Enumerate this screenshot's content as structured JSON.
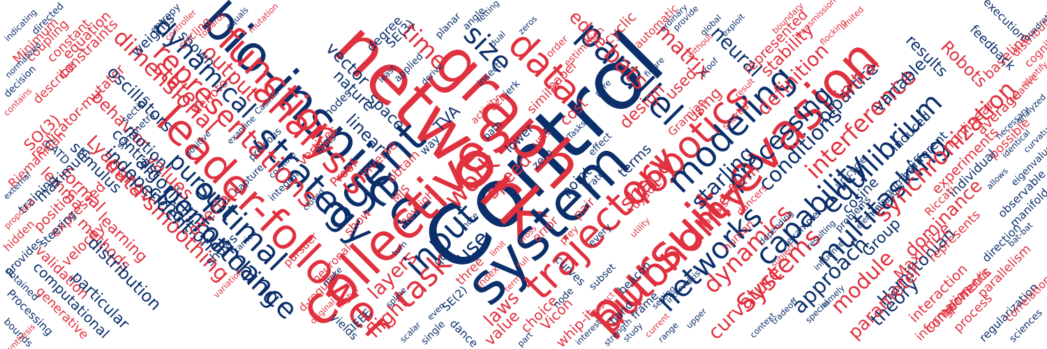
{
  "palette": {
    "red": "#e0313f",
    "navy": "#0b2f6b"
  },
  "words": [
    {
      "text": "Control",
      "color": "navy"
    },
    {
      "text": "network",
      "color": "red"
    },
    {
      "text": "graph",
      "color": "red"
    },
    {
      "text": "system",
      "color": "navy"
    },
    {
      "text": "bio-inspired",
      "color": "navy"
    },
    {
      "text": "pursuit-evasion",
      "color": "red"
    },
    {
      "text": "collectives",
      "color": "red"
    },
    {
      "text": "agent",
      "color": "navy"
    },
    {
      "text": "leader-follower",
      "color": "red"
    },
    {
      "text": "trajectory",
      "color": "red"
    },
    {
      "text": "autonomy",
      "color": "red"
    },
    {
      "text": "function",
      "color": "red"
    },
    {
      "text": "robotics",
      "color": "red"
    },
    {
      "text": "analysis",
      "color": "red"
    },
    {
      "text": "strategy",
      "color": "navy"
    },
    {
      "text": "modeling",
      "color": "navy"
    },
    {
      "text": "input",
      "color": "navy"
    },
    {
      "text": "task",
      "color": "red"
    },
    {
      "text": "data",
      "color": "red"
    },
    {
      "text": "parallel",
      "color": "navy"
    },
    {
      "text": "networks",
      "color": "navy"
    },
    {
      "text": "optimal",
      "color": "navy"
    },
    {
      "text": "performance",
      "color": "navy"
    },
    {
      "text": "capability",
      "color": "navy"
    },
    {
      "text": "equilibrium",
      "color": "navy"
    },
    {
      "text": "multitasking",
      "color": "navy"
    },
    {
      "text": "synchronization",
      "color": "red"
    },
    {
      "text": "interference",
      "color": "red"
    },
    {
      "text": "processing",
      "color": "navy"
    },
    {
      "text": "dynamics",
      "color": "red"
    },
    {
      "text": "Systems",
      "color": "red"
    },
    {
      "text": "representations",
      "color": "red"
    },
    {
      "text": "dimensional",
      "color": "red"
    },
    {
      "text": "dynamical",
      "color": "navy"
    },
    {
      "text": "states",
      "color": "red"
    },
    {
      "text": "output",
      "color": "red"
    },
    {
      "text": "matching",
      "color": "navy"
    },
    {
      "text": "pursuit",
      "color": "navy"
    },
    {
      "text": "work",
      "color": "red"
    },
    {
      "text": "size",
      "color": "navy"
    },
    {
      "text": "time",
      "color": "red"
    },
    {
      "text": "bats",
      "color": "red"
    },
    {
      "text": "matrix",
      "color": "red"
    },
    {
      "text": "edge",
      "color": "red"
    },
    {
      "text": "neural",
      "color": "navy"
    },
    {
      "text": "shape",
      "color": "red"
    },
    {
      "text": "starling",
      "color": "navy"
    },
    {
      "text": "approach",
      "color": "navy"
    },
    {
      "text": "module",
      "color": "red"
    },
    {
      "text": "curvature",
      "color": "red"
    },
    {
      "text": "conditions",
      "color": "navy"
    },
    {
      "text": "theory",
      "color": "navy"
    },
    {
      "text": "Hamiltonian",
      "color": "navy"
    },
    {
      "text": "parameter",
      "color": "red"
    },
    {
      "text": "dominance",
      "color": "red"
    },
    {
      "text": "Robots",
      "color": "red"
    },
    {
      "text": "results",
      "color": "navy"
    },
    {
      "text": "variable",
      "color": "navy"
    },
    {
      "text": "bipartite",
      "color": "navy"
    },
    {
      "text": "definition",
      "color": "red"
    },
    {
      "text": "initial",
      "color": "red"
    },
    {
      "text": "stability",
      "color": "red"
    },
    {
      "text": "represented",
      "color": "red"
    },
    {
      "text": "experiments",
      "color": "red"
    },
    {
      "text": "nonlinear",
      "color": "red"
    },
    {
      "text": "baseline",
      "color": "red"
    },
    {
      "text": "feedback",
      "color": "navy"
    },
    {
      "text": "execution",
      "color": "navy"
    },
    {
      "text": "distributed",
      "color": "red"
    },
    {
      "text": "cognitive",
      "color": "red"
    },
    {
      "text": "average",
      "color": "red"
    },
    {
      "text": "possible",
      "color": "red"
    },
    {
      "text": "individual",
      "color": "navy"
    },
    {
      "text": "induced",
      "color": "navy"
    },
    {
      "text": "different",
      "color": "navy"
    },
    {
      "text": "cosine",
      "color": "navy"
    },
    {
      "text": "Group",
      "color": "navy"
    },
    {
      "text": "Maximize",
      "color": "red"
    },
    {
      "text": "interaction",
      "color": "red"
    },
    {
      "text": "components",
      "color": "red"
    },
    {
      "text": "represents",
      "color": "red"
    },
    {
      "text": "geometric",
      "color": "red"
    },
    {
      "text": "information",
      "color": "red"
    },
    {
      "text": "process",
      "color": "red"
    },
    {
      "text": "parallelism",
      "color": "red"
    },
    {
      "text": "regularization",
      "color": "navy"
    },
    {
      "text": "direction",
      "color": "navy"
    },
    {
      "text": "correlation",
      "color": "red"
    },
    {
      "text": "sciences",
      "color": "navy"
    },
    {
      "text": "manifold",
      "color": "navy"
    },
    {
      "text": "observable",
      "color": "navy"
    },
    {
      "text": "number",
      "color": "navy"
    },
    {
      "text": "Riccati",
      "color": "red"
    },
    {
      "text": "unicycle",
      "color": "navy"
    },
    {
      "text": "lemma",
      "color": "red"
    },
    {
      "text": "formal",
      "color": "red"
    },
    {
      "text": "Lyapunov",
      "color": "red"
    },
    {
      "text": "values",
      "color": "red"
    },
    {
      "text": "behavior",
      "color": "red"
    },
    {
      "text": "SO(3)",
      "color": "red"
    },
    {
      "text": "replicator-mutator",
      "color": "red"
    },
    {
      "text": "Riemannian",
      "color": "red"
    },
    {
      "text": "constraints",
      "color": "red"
    },
    {
      "text": "describe",
      "color": "red"
    },
    {
      "text": "equation",
      "color": "red"
    },
    {
      "text": "constant",
      "color": "red"
    },
    {
      "text": "coupling",
      "color": "red"
    },
    {
      "text": "Minimum",
      "color": "red"
    },
    {
      "text": "directed",
      "color": "navy"
    },
    {
      "text": "indicating",
      "color": "navy"
    },
    {
      "text": "decision",
      "color": "navy"
    },
    {
      "text": "contains",
      "color": "red"
    },
    {
      "text": "oscillators",
      "color": "navy"
    },
    {
      "text": "stimulus",
      "color": "navy"
    },
    {
      "text": "motion",
      "color": "navy"
    },
    {
      "text": "contrast",
      "color": "navy"
    },
    {
      "text": "CATD",
      "color": "navy"
    },
    {
      "text": "maximum",
      "color": "navy"
    },
    {
      "text": "training",
      "color": "navy"
    },
    {
      "text": "position",
      "color": "red"
    },
    {
      "text": "expressed",
      "color": "red"
    },
    {
      "text": "velocity",
      "color": "red"
    },
    {
      "text": "hidden",
      "color": "red"
    },
    {
      "text": "provides",
      "color": "navy"
    },
    {
      "text": "steering",
      "color": "navy"
    },
    {
      "text": "methods",
      "color": "red"
    },
    {
      "text": "learning",
      "color": "red"
    },
    {
      "text": "validation",
      "color": "red"
    },
    {
      "text": "computational",
      "color": "navy"
    },
    {
      "text": "generative",
      "color": "red"
    },
    {
      "text": "Processing",
      "color": "navy"
    },
    {
      "text": "bounds",
      "color": "navy"
    },
    {
      "text": "synthesis",
      "color": "red"
    },
    {
      "text": "obtained",
      "color": "navy"
    },
    {
      "text": "particular",
      "color": "navy"
    },
    {
      "text": "distribution",
      "color": "navy"
    },
    {
      "text": "data-smoothing",
      "color": "red"
    },
    {
      "text": "independent",
      "color": "navy"
    },
    {
      "text": "algorithm",
      "color": "navy"
    },
    {
      "text": "condition",
      "color": "navy"
    },
    {
      "text": "overlap",
      "color": "red"
    },
    {
      "text": "shows",
      "color": "navy"
    },
    {
      "text": "layers",
      "color": "red"
    },
    {
      "text": "flight",
      "color": "red"
    },
    {
      "text": "use",
      "color": "navy"
    },
    {
      "text": "show",
      "color": "red"
    },
    {
      "text": "laws",
      "color": "red"
    },
    {
      "text": "value",
      "color": "red"
    },
    {
      "text": "speed",
      "color": "red"
    },
    {
      "text": "error",
      "color": "red"
    },
    {
      "text": "cost",
      "color": "red"
    },
    {
      "text": "design",
      "color": "red"
    },
    {
      "text": "terms",
      "color": "navy"
    },
    {
      "text": "pair",
      "color": "red"
    },
    {
      "text": "point",
      "color": "navy"
    },
    {
      "text": "perform",
      "color": "red"
    },
    {
      "text": "used",
      "color": "red"
    },
    {
      "text": "using",
      "color": "red"
    },
    {
      "text": "vector",
      "color": "navy"
    },
    {
      "text": "linear",
      "color": "navy"
    },
    {
      "text": "nature",
      "color": "navy"
    },
    {
      "text": "space",
      "color": "navy"
    },
    {
      "text": "weights",
      "color": "navy"
    },
    {
      "text": "shown",
      "color": "navy"
    },
    {
      "text": "entropy",
      "color": "navy"
    },
    {
      "text": "denote",
      "color": "red"
    },
    {
      "text": "nodes",
      "color": "navy"
    },
    {
      "text": "degree",
      "color": "navy"
    },
    {
      "text": "SE(3)",
      "color": "navy"
    },
    {
      "text": "similar",
      "color": "red"
    },
    {
      "text": "cyclic",
      "color": "red"
    },
    {
      "text": "paper",
      "color": "red"
    },
    {
      "text": "TVA",
      "color": "navy"
    },
    {
      "text": "Gramian",
      "color": "red"
    },
    {
      "text": "shared",
      "color": "red"
    },
    {
      "text": "dancers",
      "color": "red"
    },
    {
      "text": "automatic",
      "color": "red"
    },
    {
      "text": "circling",
      "color": "red"
    },
    {
      "text": "three",
      "color": "red"
    },
    {
      "text": "new",
      "color": "red"
    },
    {
      "text": "high",
      "color": "red"
    },
    {
      "text": "MJS",
      "color": "red"
    },
    {
      "text": "Vicon",
      "color": "red"
    },
    {
      "text": "choice",
      "color": "red"
    },
    {
      "text": "whip-it",
      "color": "red"
    },
    {
      "text": "dance",
      "color": "navy"
    },
    {
      "text": "yields",
      "color": "navy"
    },
    {
      "text": "IEEE",
      "color": "navy"
    },
    {
      "text": "curves",
      "color": "navy"
    },
    {
      "text": "frame",
      "color": "navy"
    },
    {
      "text": "hand",
      "color": "navy"
    },
    {
      "text": "beacon",
      "color": "navy"
    },
    {
      "text": "zero",
      "color": "navy"
    },
    {
      "text": "rate",
      "color": "navy"
    },
    {
      "text": "dyadic",
      "color": "red"
    },
    {
      "text": "unit",
      "color": "red"
    },
    {
      "text": "lower",
      "color": "navy"
    },
    {
      "text": "way",
      "color": "navy"
    },
    {
      "text": "units",
      "color": "navy"
    },
    {
      "text": "obtain",
      "color": "red"
    },
    {
      "text": "inverse",
      "color": "red"
    },
    {
      "text": "vertices",
      "color": "red"
    },
    {
      "text": "Proof",
      "color": "red"
    },
    {
      "text": "integral",
      "color": "navy"
    },
    {
      "text": "capture",
      "color": "navy"
    },
    {
      "text": "previous",
      "color": "navy"
    },
    {
      "text": "pursuer",
      "color": "red"
    },
    {
      "text": "neuronal",
      "color": "red"
    },
    {
      "text": "d-regular",
      "color": "red"
    },
    {
      "text": "symmetry",
      "color": "navy"
    },
    {
      "text": "section",
      "color": "navy"
    },
    {
      "text": "applied",
      "color": "navy"
    },
    {
      "text": "equals",
      "color": "navy"
    },
    {
      "text": "mutation",
      "color": "red"
    },
    {
      "text": "angle",
      "color": "navy"
    },
    {
      "text": "planar",
      "color": "navy"
    },
    {
      "text": "prey",
      "color": "red"
    },
    {
      "text": "node",
      "color": "navy"
    },
    {
      "text": "subset",
      "color": "navy"
    },
    {
      "text": "study",
      "color": "navy"
    },
    {
      "text": "current",
      "color": "red"
    },
    {
      "text": "setting",
      "color": "navy"
    },
    {
      "text": "interval",
      "color": "navy"
    },
    {
      "text": "exist",
      "color": "navy"
    },
    {
      "text": "human",
      "color": "red"
    },
    {
      "text": "factors",
      "color": "red"
    },
    {
      "text": "example",
      "color": "navy"
    },
    {
      "text": "problems",
      "color": "navy"
    },
    {
      "text": "elements",
      "color": "navy"
    },
    {
      "text": "limitations",
      "color": "navy"
    },
    {
      "text": "effect",
      "color": "navy"
    },
    {
      "text": "every",
      "color": "navy"
    },
    {
      "text": "insect",
      "color": "navy"
    },
    {
      "text": "path",
      "color": "navy"
    },
    {
      "text": "jerk",
      "color": "navy"
    },
    {
      "text": "letting",
      "color": "navy"
    },
    {
      "text": "qcl",
      "color": "red"
    },
    {
      "text": "SE(2)",
      "color": "navy"
    },
    {
      "text": "qc2",
      "color": "navy"
    },
    {
      "text": "index",
      "color": "red"
    },
    {
      "text": "activity",
      "color": "red"
    },
    {
      "text": "Tasks",
      "color": "navy"
    },
    {
      "text": "estimation",
      "color": "red"
    },
    {
      "text": "order",
      "color": "red"
    },
    {
      "text": "flocking",
      "color": "red"
    },
    {
      "text": "relative",
      "color": "red"
    },
    {
      "text": "allows",
      "color": "navy"
    },
    {
      "text": "identify",
      "color": "red"
    },
    {
      "text": "eigenvalue",
      "color": "navy"
    },
    {
      "text": "analyzed",
      "color": "navy"
    },
    {
      "text": "curvature",
      "color": "navy"
    },
    {
      "text": "normalized",
      "color": "navy"
    },
    {
      "text": "external",
      "color": "navy"
    },
    {
      "text": "proposed",
      "color": "red"
    },
    {
      "text": "result",
      "color": "red"
    },
    {
      "text": "limit",
      "color": "red"
    },
    {
      "text": "full",
      "color": "red"
    },
    {
      "text": "term",
      "color": "red"
    },
    {
      "text": "cross",
      "color": "red"
    },
    {
      "text": "single",
      "color": "navy"
    },
    {
      "text": "scalar",
      "color": "navy"
    },
    {
      "text": "spline",
      "color": "navy"
    },
    {
      "text": "note",
      "color": "navy"
    },
    {
      "text": "least",
      "color": "navy"
    },
    {
      "text": "derive",
      "color": "navy"
    },
    {
      "text": "Casimir",
      "color": "navy"
    },
    {
      "text": "examine",
      "color": "navy"
    },
    {
      "text": "co-state",
      "color": "navy"
    },
    {
      "text": "closed",
      "color": "navy"
    },
    {
      "text": "global",
      "color": "navy"
    },
    {
      "text": "exploit",
      "color": "navy"
    },
    {
      "text": "proof",
      "color": "navy"
    },
    {
      "text": "range",
      "color": "navy"
    },
    {
      "text": "upper",
      "color": "navy"
    },
    {
      "text": "bat-bat",
      "color": "navy"
    },
    {
      "text": "quadratic",
      "color": "navy"
    },
    {
      "text": "identical",
      "color": "navy"
    },
    {
      "text": "necessary",
      "color": "navy"
    },
    {
      "text": "resulting",
      "color": "navy"
    },
    {
      "text": "influence",
      "color": "navy"
    },
    {
      "text": "namely",
      "color": "navy"
    },
    {
      "text": "special",
      "color": "navy"
    },
    {
      "text": "tradeoff",
      "color": "navy"
    },
    {
      "text": "context",
      "color": "navy"
    },
    {
      "text": "positive",
      "color": "navy"
    },
    {
      "text": "variation",
      "color": "red"
    },
    {
      "text": "carried",
      "color": "navy"
    },
    {
      "text": "original",
      "color": "red"
    },
    {
      "text": "higher",
      "color": "red"
    },
    {
      "text": "make",
      "color": "navy"
    },
    {
      "text": "depending",
      "color": "navy"
    },
    {
      "text": "subject",
      "color": "red"
    },
    {
      "text": "strength",
      "color": "navy"
    },
    {
      "text": "interest",
      "color": "navy"
    },
    {
      "text": "respect",
      "color": "red"
    },
    {
      "text": "utility",
      "color": "red"
    },
    {
      "text": "dual",
      "color": "navy"
    },
    {
      "text": "zeros",
      "color": "navy"
    },
    {
      "text": "controller",
      "color": "red"
    },
    {
      "text": "towards",
      "color": "red"
    },
    {
      "text": "provide",
      "color": "navy"
    },
    {
      "text": "without",
      "color": "red"
    },
    {
      "text": "figure",
      "color": "navy"
    },
    {
      "text": "ordinary",
      "color": "navy"
    },
    {
      "text": "transmission",
      "color": "red"
    },
    {
      "text": "boundary",
      "color": "red"
    },
    {
      "text": "limited",
      "color": "red"
    },
    {
      "text": "part",
      "color": "navy"
    },
    {
      "text": "turn",
      "color": "navy"
    },
    {
      "text": "even",
      "color": "navy"
    },
    {
      "text": "pure",
      "color": "navy"
    }
  ]
}
